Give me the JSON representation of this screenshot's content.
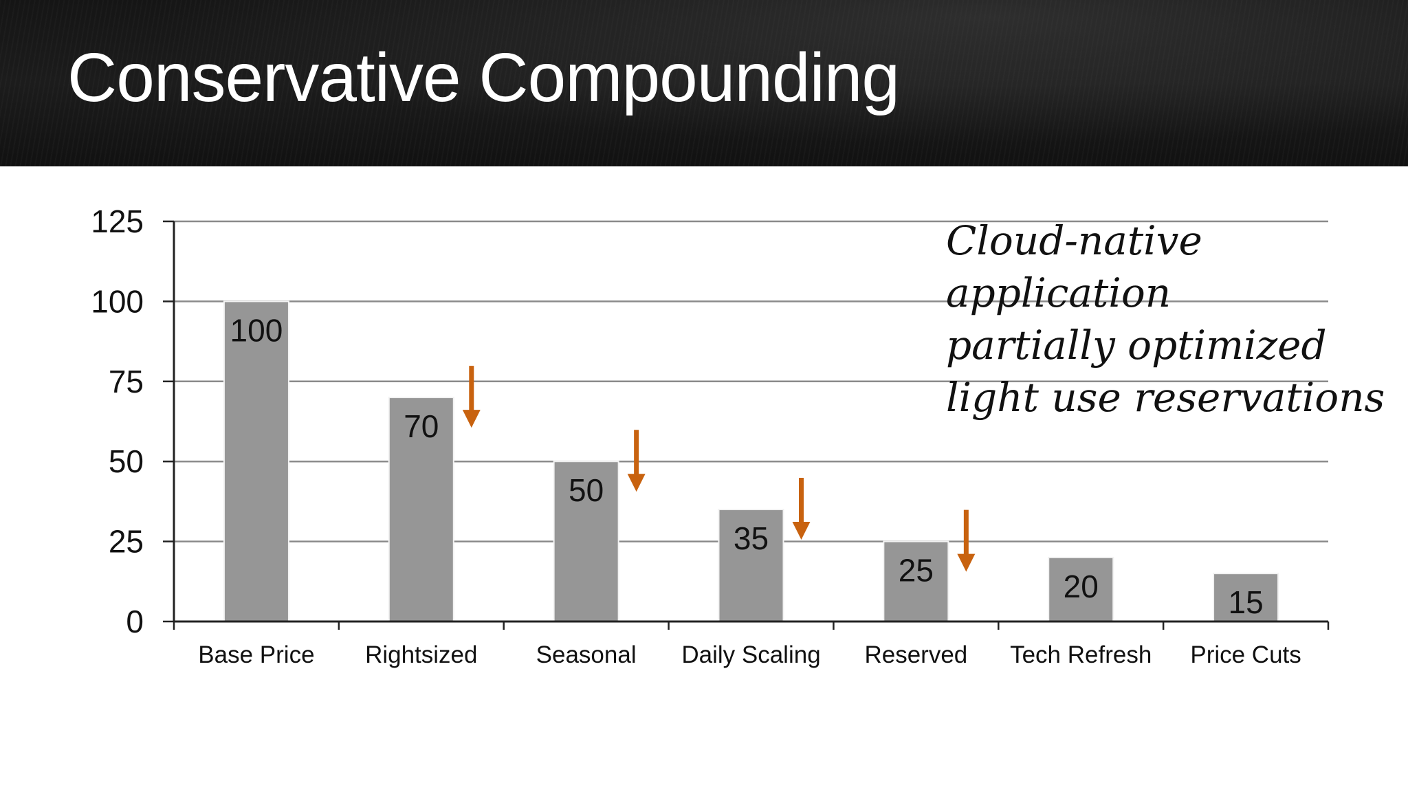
{
  "slide": {
    "title": "Conservative Compounding",
    "annotation_lines": [
      "Cloud-native",
      "application",
      "partially optimized",
      "light use reservations"
    ]
  },
  "colors": {
    "bar": "#969696",
    "arrow": "#C8620F",
    "gridline": "#8a8a8a",
    "axis": "#222222"
  },
  "chart_data": {
    "type": "bar",
    "title": "",
    "xlabel": "",
    "ylabel": "",
    "ylim": [
      0,
      125
    ],
    "yticks": [
      0,
      25,
      50,
      75,
      100,
      125
    ],
    "grid": true,
    "categories": [
      "Base Price",
      "Rightsized",
      "Seasonal",
      "Daily Scaling",
      "Reserved",
      "Tech Refresh",
      "Price Cuts"
    ],
    "values": [
      100,
      70,
      50,
      35,
      25,
      20,
      15
    ],
    "data_labels": [
      "100",
      "70",
      "50",
      "35",
      "25",
      "20",
      "15"
    ],
    "annotations": {
      "down_arrows_after": [
        "Rightsized",
        "Seasonal",
        "Daily Scaling",
        "Reserved"
      ]
    }
  }
}
